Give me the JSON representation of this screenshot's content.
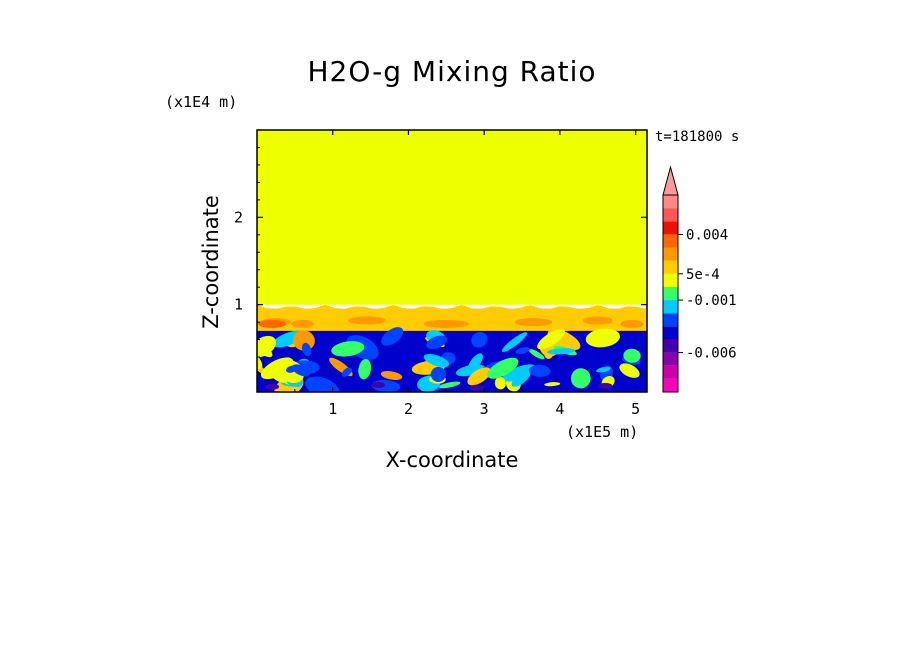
{
  "chart_data": {
    "type": "heatmap",
    "title": "H2O-g Mixing Ratio",
    "xlabel": "X-coordinate",
    "ylabel": "Z-coordinate",
    "x_unit": "(x1E5 m)",
    "y_unit": "(x1E4 m)",
    "time_label": "t=181800 s",
    "xlim": [
      0,
      5.15
    ],
    "ylim": [
      0,
      3.0
    ],
    "x_ticks": [
      "1",
      "2",
      "3",
      "4",
      "5"
    ],
    "y_ticks": [
      "1",
      "2"
    ],
    "x_tick_values": [
      1,
      2,
      3,
      4,
      5
    ],
    "y_tick_values": [
      1,
      2
    ],
    "upper_layer": {
      "z_from": 1.0,
      "z_to": 3.0,
      "color": "#eeff00"
    },
    "transition_layer": {
      "z_from": 0.7,
      "z_to": 1.0,
      "color": "#ffcc00"
    },
    "colorbar": {
      "labels": [
        {
          "text": "0.004",
          "value": 0.004
        },
        {
          "text": "5e-4",
          "value": 0.0005
        },
        {
          "text": "-0.001",
          "value": -0.001
        },
        {
          "text": "-0.006",
          "value": -0.006
        }
      ],
      "colors": [
        "#ff00bb",
        "#cc00aa",
        "#8800aa",
        "#4400aa",
        "#0000cc",
        "#0044ff",
        "#00ccff",
        "#33ff66",
        "#eeff00",
        "#ffcc00",
        "#ff9900",
        "#ff6600",
        "#ee1100",
        "#ff5555",
        "#ff8888"
      ],
      "extend_max_color": "#ff9999"
    },
    "grid": false
  }
}
